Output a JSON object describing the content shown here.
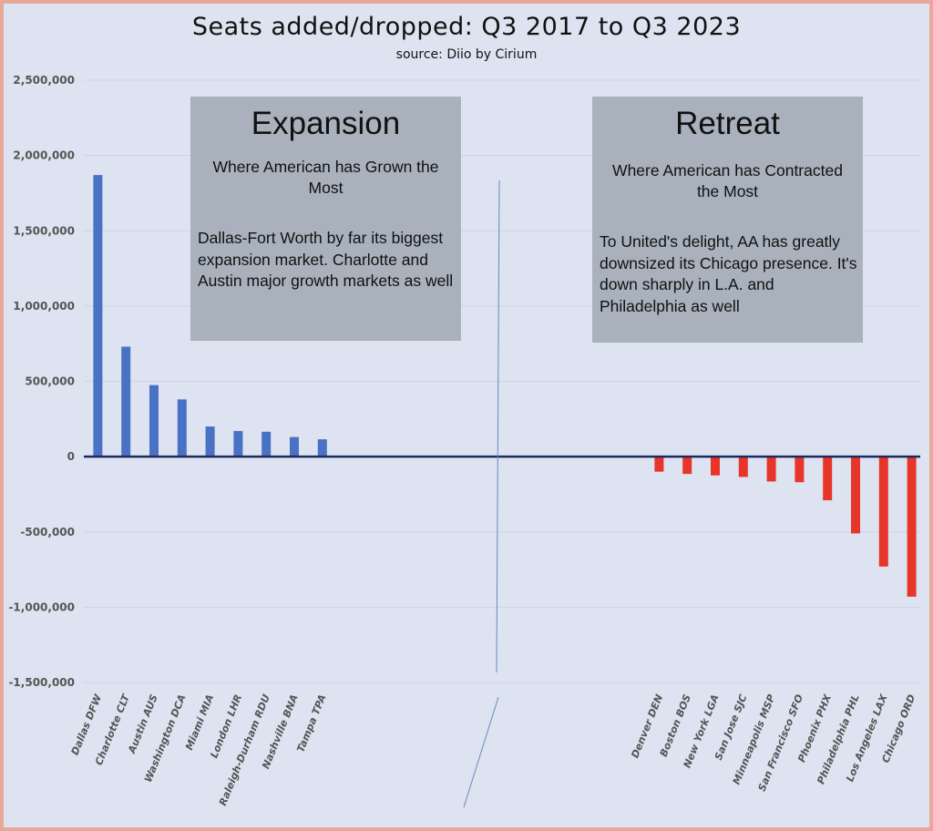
{
  "chart_data": {
    "type": "bar",
    "title": "Seats added/dropped: Q3 2017 to Q3 2023",
    "subtitle": "source: Diio by Cirium",
    "xlabel": "",
    "ylabel": "",
    "ylim": [
      -1500000,
      2500000
    ],
    "yticks": [
      "2,500,000",
      "2,000,000",
      "1,500,000",
      "1,000,000",
      "500,000",
      "0",
      "-500,000",
      "-1,000,000",
      "-1,500,000"
    ],
    "ytick_values": [
      2500000,
      2000000,
      1500000,
      1000000,
      500000,
      0,
      -500000,
      -1000000,
      -1500000
    ],
    "grid": true,
    "legend": "none",
    "colors": {
      "positive": "#4a72c4",
      "negative": "#e8352a",
      "axis": "#1b2a5e",
      "grid": "#c9d0de"
    },
    "series": [
      {
        "categories": [
          "Dallas DFW",
          "Charlotte CLT",
          "Austin AUS",
          "Washington DCA",
          "Miami MIA",
          "London LHR",
          "Raleigh-Durham RDU",
          "Nashville BNA",
          "Tampa TPA"
        ],
        "values": [
          1870000,
          730000,
          475000,
          380000,
          200000,
          170000,
          165000,
          130000,
          115000
        ]
      },
      {
        "categories": [
          "Denver DEN",
          "Boston BOS",
          "New York LGA",
          "San Jose SJC",
          "Minneapolis MSP",
          "San Francisco SFO",
          "Phoenix PHX",
          "Philadelphia PHL",
          "Los Angeles LAX",
          "Chicago ORD"
        ],
        "values": [
          -100000,
          -115000,
          -125000,
          -135000,
          -165000,
          -170000,
          -290000,
          -510000,
          -730000,
          -930000
        ]
      }
    ],
    "annotations": [
      {
        "title": "Expansion",
        "subtitle": "Where American has Grown the Most",
        "text": "Dallas-Fort Worth by far its biggest expansion market. Charlotte and Austin major growth markets as well"
      },
      {
        "title": "Retreat",
        "subtitle": "Where American has Contracted the Most",
        "text": "To United's delight, AA has greatly downsized its Chicago presence. It's down sharply in L.A. and Philadelphia as well"
      }
    ]
  }
}
